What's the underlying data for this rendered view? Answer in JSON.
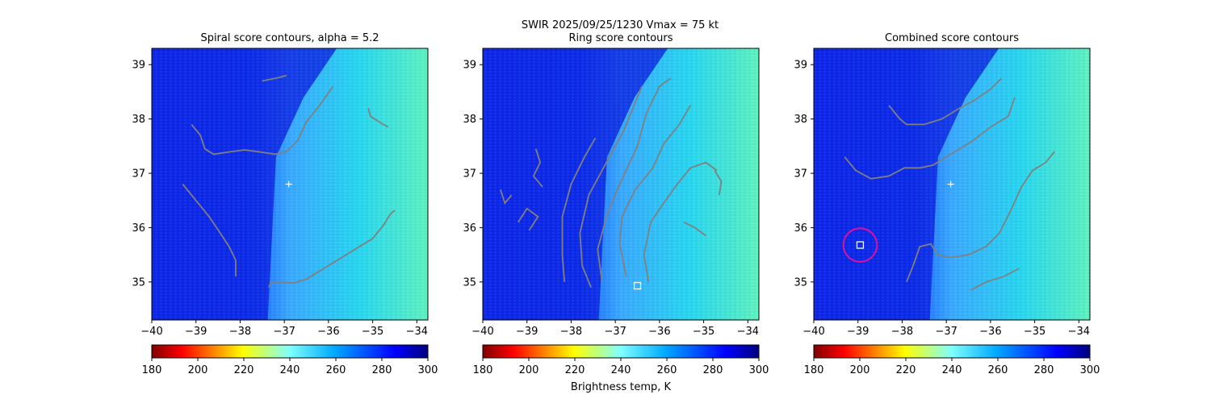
{
  "figure": {
    "suptitle_line1": "SWIR  2025/09/25/1230    Vmax = 75 kt",
    "colorbar_label": "Brightness temp, K"
  },
  "chart_data": [
    {
      "type": "heatmap",
      "title": "Spiral score contours, alpha =  5.2",
      "xlim": [
        -40.0,
        -33.75
      ],
      "ylim": [
        34.3,
        39.3
      ],
      "xticks": [
        -40,
        -39,
        -38,
        -37,
        -36,
        -35,
        -34
      ],
      "yticks": [
        35,
        36,
        37,
        38,
        39
      ],
      "colorbar": {
        "range": [
          180,
          300
        ],
        "ticks": [
          180,
          200,
          220,
          240,
          260,
          280,
          300
        ],
        "cmap": "jet_r"
      },
      "center_marker": {
        "x": -36.9,
        "y": 36.8
      },
      "contour_color": "#808080",
      "contours": [
        [
          [
            -39.1,
            37.9
          ],
          [
            -38.9,
            37.7
          ],
          [
            -38.8,
            37.45
          ],
          [
            -38.6,
            37.35
          ],
          [
            -38.2,
            37.4
          ],
          [
            -37.9,
            37.43
          ],
          [
            -37.6,
            37.4
          ],
          [
            -37.2,
            37.35
          ],
          [
            -36.95,
            37.4
          ],
          [
            -36.7,
            37.6
          ],
          [
            -36.5,
            37.95
          ],
          [
            -36.2,
            38.25
          ],
          [
            -35.9,
            38.6
          ]
        ],
        [
          [
            -37.5,
            38.7
          ],
          [
            -37.2,
            38.75
          ],
          [
            -36.95,
            38.8
          ]
        ],
        [
          [
            -35.1,
            38.2
          ],
          [
            -35.05,
            38.05
          ],
          [
            -34.8,
            37.92
          ],
          [
            -34.65,
            37.85
          ]
        ],
        [
          [
            -39.3,
            36.8
          ],
          [
            -39.0,
            36.5
          ],
          [
            -38.7,
            36.2
          ],
          [
            -38.45,
            35.9
          ],
          [
            -38.25,
            35.65
          ],
          [
            -38.1,
            35.4
          ],
          [
            -38.1,
            35.1
          ]
        ],
        [
          [
            -37.35,
            34.9
          ],
          [
            -37.3,
            35.0
          ],
          [
            -37.1,
            35.0
          ],
          [
            -36.8,
            34.98
          ],
          [
            -36.5,
            35.05
          ],
          [
            -36.2,
            35.2
          ],
          [
            -35.9,
            35.35
          ],
          [
            -35.6,
            35.5
          ],
          [
            -35.3,
            35.65
          ],
          [
            -35.0,
            35.8
          ],
          [
            -34.75,
            36.05
          ],
          [
            -34.6,
            36.25
          ],
          [
            -34.5,
            36.32
          ]
        ]
      ]
    },
    {
      "type": "heatmap",
      "title": "Ring score contours",
      "xlim": [
        -40.0,
        -33.75
      ],
      "ylim": [
        34.3,
        39.3
      ],
      "xticks": [
        -40,
        -39,
        -38,
        -37,
        -36,
        -35,
        -34
      ],
      "yticks": [
        35,
        36,
        37,
        38,
        39
      ],
      "colorbar": {
        "range": [
          180,
          300
        ],
        "ticks": [
          180,
          200,
          220,
          240,
          260,
          280,
          300
        ],
        "cmap": "jet_r"
      },
      "square_marker": {
        "x": -36.5,
        "y": 34.93
      },
      "contour_color": "#808080",
      "contours": [
        [
          [
            -38.15,
            35.0
          ],
          [
            -38.2,
            35.5
          ],
          [
            -38.2,
            36.2
          ],
          [
            -38.0,
            36.8
          ],
          [
            -37.7,
            37.3
          ],
          [
            -37.45,
            37.65
          ]
        ],
        [
          [
            -37.55,
            34.9
          ],
          [
            -37.75,
            35.3
          ],
          [
            -37.8,
            35.9
          ],
          [
            -37.6,
            36.6
          ],
          [
            -37.2,
            37.2
          ],
          [
            -36.8,
            37.8
          ],
          [
            -36.55,
            38.3
          ],
          [
            -36.4,
            38.6
          ]
        ],
        [
          [
            -37.3,
            35.0
          ],
          [
            -37.4,
            35.6
          ],
          [
            -37.2,
            36.2
          ],
          [
            -36.9,
            36.8
          ],
          [
            -36.5,
            37.5
          ],
          [
            -36.3,
            38.1
          ],
          [
            -36.0,
            38.6
          ],
          [
            -35.75,
            38.75
          ]
        ],
        [
          [
            -36.75,
            35.1
          ],
          [
            -36.9,
            35.7
          ],
          [
            -36.85,
            36.2
          ],
          [
            -36.55,
            36.7
          ],
          [
            -36.15,
            37.1
          ],
          [
            -35.9,
            37.55
          ],
          [
            -35.55,
            37.9
          ],
          [
            -35.3,
            38.25
          ]
        ],
        [
          [
            -36.25,
            35.0
          ],
          [
            -36.35,
            35.5
          ],
          [
            -36.2,
            36.1
          ],
          [
            -35.95,
            36.4
          ],
          [
            -35.6,
            36.8
          ],
          [
            -35.3,
            37.1
          ],
          [
            -34.95,
            37.2
          ],
          [
            -34.7,
            37.05
          ]
        ],
        [
          [
            -38.8,
            37.45
          ],
          [
            -38.7,
            37.2
          ],
          [
            -38.85,
            36.95
          ],
          [
            -38.65,
            36.75
          ]
        ],
        [
          [
            -39.2,
            36.1
          ],
          [
            -39.0,
            36.35
          ],
          [
            -38.75,
            36.2
          ],
          [
            -38.95,
            35.95
          ]
        ],
        [
          [
            -39.6,
            36.7
          ],
          [
            -39.5,
            36.45
          ],
          [
            -39.35,
            36.6
          ]
        ],
        [
          [
            -35.45,
            36.1
          ],
          [
            -35.2,
            36.0
          ],
          [
            -34.95,
            35.85
          ]
        ],
        [
          [
            -34.75,
            37.05
          ],
          [
            -34.6,
            36.85
          ],
          [
            -34.65,
            36.6
          ]
        ]
      ]
    },
    {
      "type": "heatmap",
      "title": "Combined score contours",
      "xlim": [
        -40.0,
        -33.75
      ],
      "ylim": [
        34.3,
        39.3
      ],
      "xticks": [
        -40,
        -39,
        -38,
        -37,
        -36,
        -35,
        -34
      ],
      "yticks": [
        35,
        36,
        37,
        38,
        39
      ],
      "colorbar": {
        "range": [
          180,
          300
        ],
        "ticks": [
          180,
          200,
          220,
          240,
          260,
          280,
          300
        ],
        "cmap": "jet_r"
      },
      "center_marker": {
        "x": -36.9,
        "y": 36.8
      },
      "square_marker": {
        "x": -38.95,
        "y": 35.68
      },
      "circle_marker": {
        "x": -38.95,
        "y": 35.68,
        "r": 0.38,
        "color": "#e0109c"
      },
      "contour_color": "#808080",
      "contours": [
        [
          [
            -38.3,
            38.25
          ],
          [
            -38.05,
            38.0
          ],
          [
            -37.9,
            37.9
          ],
          [
            -37.5,
            37.9
          ],
          [
            -37.1,
            38.0
          ],
          [
            -36.7,
            38.2
          ],
          [
            -36.35,
            38.35
          ],
          [
            -36.0,
            38.55
          ],
          [
            -35.75,
            38.75
          ]
        ],
        [
          [
            -39.3,
            37.3
          ],
          [
            -39.05,
            37.05
          ],
          [
            -38.7,
            36.9
          ],
          [
            -38.3,
            36.95
          ],
          [
            -37.95,
            37.1
          ],
          [
            -37.6,
            37.1
          ],
          [
            -37.3,
            37.15
          ],
          [
            -36.9,
            37.35
          ],
          [
            -36.4,
            37.6
          ],
          [
            -36.0,
            37.85
          ],
          [
            -35.6,
            38.05
          ],
          [
            -35.45,
            38.4
          ]
        ],
        [
          [
            -37.9,
            35.0
          ],
          [
            -37.75,
            35.3
          ],
          [
            -37.6,
            35.65
          ],
          [
            -37.35,
            35.7
          ],
          [
            -37.2,
            35.5
          ],
          [
            -36.9,
            35.45
          ],
          [
            -36.5,
            35.5
          ],
          [
            -36.1,
            35.65
          ],
          [
            -35.8,
            35.9
          ],
          [
            -35.55,
            36.3
          ],
          [
            -35.3,
            36.75
          ],
          [
            -35.05,
            37.05
          ],
          [
            -34.75,
            37.2
          ],
          [
            -34.55,
            37.4
          ]
        ],
        [
          [
            -36.45,
            34.85
          ],
          [
            -36.1,
            35.0
          ],
          [
            -35.7,
            35.1
          ],
          [
            -35.35,
            35.25
          ]
        ]
      ]
    }
  ]
}
